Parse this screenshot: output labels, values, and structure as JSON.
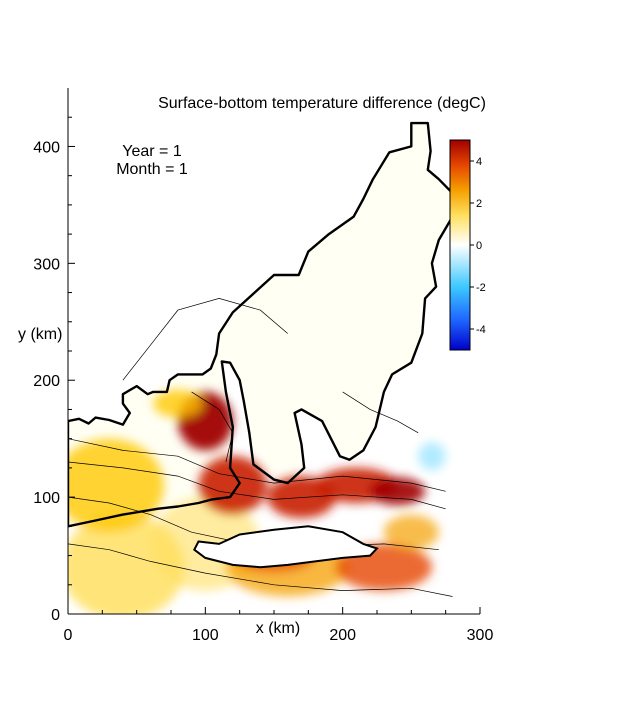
{
  "chart_data": {
    "type": "heatmap",
    "title": "Surface-bottom temperature difference (degC)",
    "annotations": [
      "Year = 1",
      "Month = 1"
    ],
    "xlabel": "x (km)",
    "ylabel": "y (km)",
    "xlim": [
      0,
      300
    ],
    "ylim": [
      0,
      450
    ],
    "x_ticks": [
      "0",
      "100",
      "200",
      "300"
    ],
    "y_ticks": [
      "0",
      "100",
      "200",
      "300",
      "400"
    ],
    "colorbar": {
      "range": [
        -5,
        5
      ],
      "ticks": [
        "4",
        "2",
        "0",
        "-2",
        "-4"
      ],
      "colors": [
        "#0000c8",
        "#1e64ff",
        "#3cc8ff",
        "#ffffff",
        "#ffe060",
        "#f5a000",
        "#e64600",
        "#a00000"
      ]
    },
    "coastline_km": [
      [
        0,
        165
      ],
      [
        8,
        167
      ],
      [
        15,
        163
      ],
      [
        20,
        168
      ],
      [
        30,
        166
      ],
      [
        40,
        162
      ],
      [
        45,
        172
      ],
      [
        40,
        180
      ],
      [
        40,
        188
      ],
      [
        50,
        195
      ],
      [
        58,
        188
      ],
      [
        62,
        190
      ],
      [
        72,
        190
      ],
      [
        74,
        200
      ],
      [
        80,
        205
      ],
      [
        98,
        205
      ],
      [
        104,
        210
      ],
      [
        108,
        222
      ],
      [
        110,
        240
      ],
      [
        120,
        258
      ],
      [
        150,
        290
      ],
      [
        168,
        290
      ],
      [
        175,
        310
      ],
      [
        190,
        325
      ],
      [
        208,
        340
      ],
      [
        215,
        355
      ],
      [
        222,
        372
      ],
      [
        234,
        395
      ],
      [
        250,
        400
      ],
      [
        250,
        420
      ],
      [
        262,
        420
      ],
      [
        264,
        396
      ],
      [
        262,
        380
      ],
      [
        270,
        372
      ],
      [
        280,
        360
      ],
      [
        280,
        340
      ],
      [
        270,
        320
      ],
      [
        265,
        300
      ],
      [
        268,
        280
      ],
      [
        260,
        270
      ],
      [
        258,
        240
      ],
      [
        250,
        215
      ],
      [
        236,
        205
      ],
      [
        230,
        190
      ],
      [
        224,
        160
      ],
      [
        215,
        140
      ],
      [
        205,
        132
      ],
      [
        198,
        135
      ],
      [
        185,
        165
      ],
      [
        170,
        175
      ],
      [
        165,
        172
      ],
      [
        170,
        145
      ],
      [
        172,
        125
      ],
      [
        160,
        112
      ],
      [
        150,
        115
      ],
      [
        135,
        128
      ],
      [
        132,
        155
      ],
      [
        128,
        182
      ],
      [
        125,
        200
      ],
      [
        118,
        215
      ],
      [
        112,
        216
      ],
      [
        115,
        190
      ],
      [
        120,
        160
      ],
      [
        118,
        125
      ],
      [
        125,
        112
      ],
      [
        118,
        100
      ],
      [
        105,
        98
      ],
      [
        95,
        95
      ],
      [
        80,
        92
      ],
      [
        65,
        90
      ],
      [
        40,
        85
      ],
      [
        20,
        80
      ],
      [
        0,
        75
      ]
    ],
    "notes": [
      "warm band 3-5 degC along channel y 80-130 km",
      "hot spot near x 100 km, y 170 km",
      "cold patch near x 265 km, y 135 km"
    ]
  }
}
